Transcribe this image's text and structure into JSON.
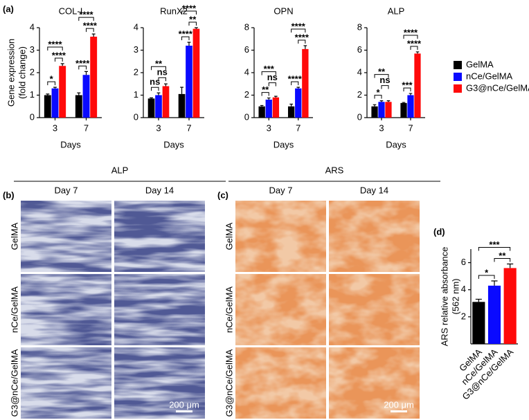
{
  "chart_data": [
    {
      "panel": "(a)",
      "type": "bar",
      "title": "COL-I",
      "ylabel": [
        "Gene expression",
        "(fold change)"
      ],
      "xlabel": "Days",
      "categories": [
        "3",
        "7"
      ],
      "series": [
        {
          "name": "GelMA",
          "color": "#000000",
          "values": [
            1.0,
            1.0
          ],
          "errors": [
            0.05,
            0.1
          ]
        },
        {
          "name": "nCe/GelMA",
          "color": "#0a0aff",
          "values": [
            1.3,
            1.9
          ],
          "errors": [
            0.05,
            0.15
          ]
        },
        {
          "name": "G3@nCe/GelMA",
          "color": "#ff0a0a",
          "values": [
            2.3,
            3.6
          ],
          "errors": [
            0.1,
            0.12
          ]
        }
      ],
      "ylim": [
        0,
        4
      ],
      "yticks": [
        0,
        1,
        2,
        3,
        4
      ],
      "annotations": [
        "*",
        "****",
        "****",
        "****",
        "****",
        "****"
      ]
    },
    {
      "type": "bar",
      "title": "RunX2",
      "xlabel": "Days",
      "categories": [
        "3",
        "7"
      ],
      "series": [
        {
          "color": "#000000",
          "values": [
            0.85,
            1.05
          ],
          "errors": [
            0.03,
            0.3
          ]
        },
        {
          "color": "#0a0aff",
          "values": [
            1.0,
            3.2
          ],
          "errors": [
            0.1,
            0.15
          ]
        },
        {
          "color": "#ff0a0a",
          "values": [
            1.4,
            3.95
          ],
          "errors": [
            0.1,
            0.05
          ]
        }
      ],
      "ylim": [
        0,
        4
      ],
      "yticks": [
        0,
        1,
        2,
        3,
        4
      ],
      "annotations": [
        "ns",
        "ns",
        "**",
        "****",
        "**",
        "****"
      ]
    },
    {
      "type": "bar",
      "title": "OPN",
      "xlabel": "Days",
      "categories": [
        "3",
        "7"
      ],
      "series": [
        {
          "color": "#000000",
          "values": [
            1.0,
            1.0
          ],
          "errors": [
            0.08,
            0.2
          ]
        },
        {
          "color": "#0a0aff",
          "values": [
            1.6,
            2.6
          ],
          "errors": [
            0.15,
            0.1
          ]
        },
        {
          "color": "#ff0a0a",
          "values": [
            1.8,
            6.1
          ],
          "errors": [
            0.1,
            0.3
          ]
        }
      ],
      "ylim": [
        0,
        8
      ],
      "yticks": [
        0,
        2,
        4,
        6,
        8
      ],
      "annotations": [
        "**",
        "ns",
        "***",
        "****",
        "****",
        "****"
      ]
    },
    {
      "type": "bar",
      "title": "ALP",
      "xlabel": "Days",
      "categories": [
        "3",
        "7"
      ],
      "series": [
        {
          "color": "#000000",
          "values": [
            1.0,
            1.3
          ],
          "errors": [
            0.15,
            0.05
          ]
        },
        {
          "color": "#0a0aff",
          "values": [
            1.4,
            2.0
          ],
          "errors": [
            0.1,
            0.15
          ]
        },
        {
          "color": "#ff0a0a",
          "values": [
            1.4,
            5.7
          ],
          "errors": [
            0.1,
            0.15
          ]
        }
      ],
      "ylim": [
        0,
        8
      ],
      "yticks": [
        0,
        2,
        4,
        6,
        8
      ],
      "annotations": [
        "*",
        "ns",
        "**",
        "***",
        "****",
        "****"
      ]
    },
    {
      "panel": "(d)",
      "type": "bar",
      "ylabel": [
        "ARS relative absorbance",
        "(562 nm)"
      ],
      "categories": [
        "GelMA",
        "nCe/GelMA",
        "G3@nCe/GelMA"
      ],
      "values": [
        3.1,
        4.3,
        5.6
      ],
      "errors": [
        0.2,
        0.35,
        0.3
      ],
      "colors": [
        "#000000",
        "#0a0aff",
        "#ff0a0a"
      ],
      "ylim": [
        0,
        7
      ],
      "yticks": [
        2,
        4,
        6
      ],
      "annotations": [
        "*",
        "**",
        "***"
      ]
    }
  ],
  "image_panels": [
    {
      "label": "(b)",
      "title": "ALP",
      "columns": [
        "Day 7",
        "Day 14"
      ],
      "rows": [
        "GelMA",
        "nCe/GelMA",
        "G3@nCe/GelMA"
      ],
      "scale_bar": "200 μm"
    },
    {
      "label": "(c)",
      "title": "ARS",
      "columns": [
        "Day 7",
        "Day 14"
      ],
      "rows": [
        "GelMA",
        "nCe/GelMA",
        "G3@nCe/GelMA"
      ],
      "scale_bar": "200 μm"
    }
  ]
}
